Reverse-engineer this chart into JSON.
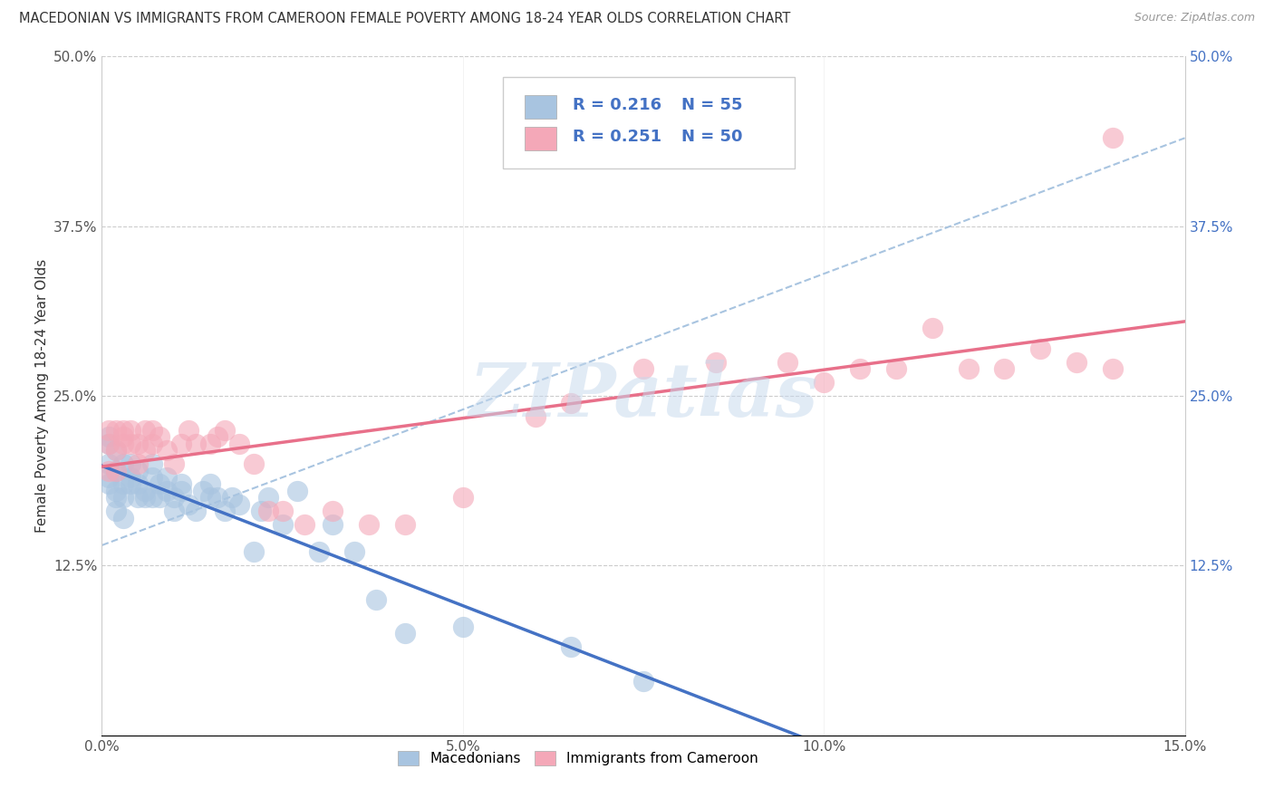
{
  "title": "MACEDONIAN VS IMMIGRANTS FROM CAMEROON FEMALE POVERTY AMONG 18-24 YEAR OLDS CORRELATION CHART",
  "source": "Source: ZipAtlas.com",
  "ylabel": "Female Poverty Among 18-24 Year Olds",
  "xlim": [
    0,
    0.15
  ],
  "ylim": [
    0,
    0.5
  ],
  "xticks": [
    0.0,
    0.05,
    0.1,
    0.15
  ],
  "xtick_labels": [
    "0.0%",
    "5.0%",
    "10.0%",
    "15.0%"
  ],
  "yticks": [
    0.0,
    0.125,
    0.25,
    0.375,
    0.5
  ],
  "ytick_labels": [
    "",
    "12.5%",
    "25.0%",
    "37.5%",
    "50.0%"
  ],
  "legend_r1": "R = 0.216",
  "legend_n1": "N = 55",
  "legend_r2": "R = 0.251",
  "legend_n2": "N = 50",
  "macedonian_color": "#a8c4e0",
  "cameroon_color": "#f4a8b8",
  "macedonian_line_color": "#4472c4",
  "cameroon_line_color": "#e8708a",
  "dashed_line_color": "#a8c4e0",
  "watermark_text": "ZIPatlas",
  "watermark_color": "#c5d8ed",
  "macedonian_x": [
    0.001,
    0.001,
    0.001,
    0.001,
    0.001,
    0.002,
    0.002,
    0.002,
    0.002,
    0.002,
    0.003,
    0.003,
    0.003,
    0.003,
    0.004,
    0.004,
    0.004,
    0.005,
    0.005,
    0.005,
    0.006,
    0.006,
    0.007,
    0.007,
    0.007,
    0.008,
    0.008,
    0.009,
    0.009,
    0.01,
    0.01,
    0.011,
    0.011,
    0.012,
    0.013,
    0.014,
    0.015,
    0.015,
    0.016,
    0.017,
    0.018,
    0.019,
    0.021,
    0.022,
    0.023,
    0.025,
    0.027,
    0.03,
    0.032,
    0.035,
    0.038,
    0.042,
    0.05,
    0.065,
    0.075
  ],
  "macedonian_y": [
    0.2,
    0.22,
    0.19,
    0.185,
    0.215,
    0.18,
    0.195,
    0.21,
    0.175,
    0.165,
    0.2,
    0.185,
    0.175,
    0.16,
    0.19,
    0.2,
    0.185,
    0.175,
    0.185,
    0.195,
    0.175,
    0.18,
    0.19,
    0.175,
    0.2,
    0.175,
    0.185,
    0.18,
    0.19,
    0.165,
    0.175,
    0.18,
    0.185,
    0.17,
    0.165,
    0.18,
    0.175,
    0.185,
    0.175,
    0.165,
    0.175,
    0.17,
    0.135,
    0.165,
    0.175,
    0.155,
    0.18,
    0.135,
    0.155,
    0.135,
    0.1,
    0.075,
    0.08,
    0.065,
    0.04
  ],
  "cameroon_x": [
    0.001,
    0.001,
    0.001,
    0.002,
    0.002,
    0.002,
    0.003,
    0.003,
    0.003,
    0.004,
    0.004,
    0.005,
    0.005,
    0.006,
    0.006,
    0.007,
    0.007,
    0.008,
    0.009,
    0.01,
    0.011,
    0.012,
    0.013,
    0.015,
    0.016,
    0.017,
    0.019,
    0.021,
    0.023,
    0.025,
    0.028,
    0.032,
    0.037,
    0.042,
    0.05,
    0.06,
    0.065,
    0.075,
    0.085,
    0.095,
    0.1,
    0.105,
    0.11,
    0.115,
    0.12,
    0.125,
    0.13,
    0.135,
    0.14,
    0.14
  ],
  "cameroon_y": [
    0.215,
    0.225,
    0.195,
    0.21,
    0.225,
    0.195,
    0.225,
    0.215,
    0.22,
    0.215,
    0.225,
    0.215,
    0.2,
    0.21,
    0.225,
    0.215,
    0.225,
    0.22,
    0.21,
    0.2,
    0.215,
    0.225,
    0.215,
    0.215,
    0.22,
    0.225,
    0.215,
    0.2,
    0.165,
    0.165,
    0.155,
    0.165,
    0.155,
    0.155,
    0.175,
    0.235,
    0.245,
    0.27,
    0.275,
    0.275,
    0.26,
    0.27,
    0.27,
    0.3,
    0.27,
    0.27,
    0.285,
    0.275,
    0.27,
    0.44
  ]
}
